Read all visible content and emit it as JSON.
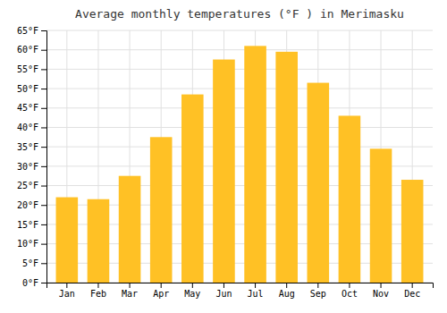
{
  "chart_data": {
    "type": "bar",
    "title": "Average monthly temperatures (°F ) in Merimasku",
    "categories": [
      "Jan",
      "Feb",
      "Mar",
      "Apr",
      "May",
      "Jun",
      "Jul",
      "Aug",
      "Sep",
      "Oct",
      "Nov",
      "Dec"
    ],
    "values": [
      22.0,
      21.5,
      27.5,
      37.5,
      48.5,
      57.5,
      61.0,
      59.5,
      51.5,
      43.0,
      34.5,
      26.5
    ],
    "color": "#FFC125",
    "ylim": [
      0,
      65
    ],
    "yticks": [
      {
        "value": 0,
        "label": "0°F"
      },
      {
        "value": 5,
        "label": "5°F"
      },
      {
        "value": 10,
        "label": "10°F"
      },
      {
        "value": 15,
        "label": "15°F"
      },
      {
        "value": 20,
        "label": "20°F"
      },
      {
        "value": 25,
        "label": "25°F"
      },
      {
        "value": 30,
        "label": "30°F"
      },
      {
        "value": 35,
        "label": "35°F"
      },
      {
        "value": 40,
        "label": "40°F"
      },
      {
        "value": 45,
        "label": "45°F"
      },
      {
        "value": 50,
        "label": "50°F"
      },
      {
        "value": 55,
        "label": "55°F"
      },
      {
        "value": 60,
        "label": "60°F"
      },
      {
        "value": 65,
        "label": "65°F"
      }
    ],
    "grid": true
  }
}
